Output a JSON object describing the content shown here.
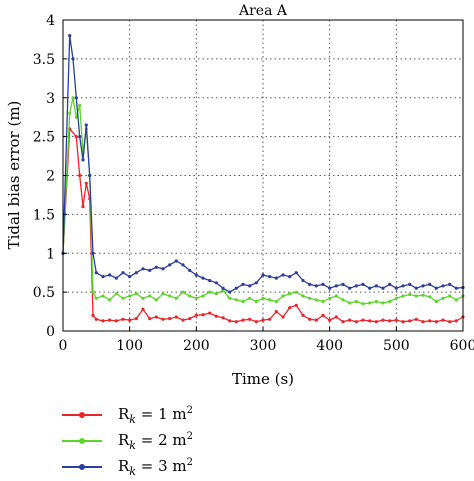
{
  "chart_data": {
    "type": "line",
    "title": "Area A",
    "xlabel": "Time (s)",
    "ylabel": "Tidal bias error (m)",
    "xlim": [
      0,
      600
    ],
    "ylim": [
      0,
      4
    ],
    "x_ticks": [
      0,
      100,
      200,
      300,
      400,
      500,
      600
    ],
    "y_ticks": [
      0,
      0.5,
      1,
      1.5,
      2,
      2.5,
      3,
      3.5,
      4
    ],
    "grid": true,
    "legend_position": "bottom-left-outside",
    "series": [
      {
        "name": "R_k = 1 m²",
        "legend": {
          "base": "R",
          "sub": "k",
          "mid": " = 1 m",
          "sup": "2"
        },
        "color": "#e8262a",
        "x": [
          0,
          10,
          20,
          25,
          30,
          35,
          40,
          45,
          50,
          60,
          70,
          80,
          90,
          100,
          110,
          120,
          130,
          140,
          150,
          160,
          170,
          180,
          190,
          200,
          210,
          220,
          230,
          240,
          250,
          260,
          270,
          280,
          290,
          300,
          310,
          320,
          330,
          340,
          350,
          360,
          370,
          380,
          390,
          400,
          410,
          420,
          430,
          440,
          450,
          460,
          470,
          480,
          490,
          500,
          510,
          520,
          530,
          540,
          550,
          560,
          570,
          580,
          590,
          600
        ],
        "y": [
          1.0,
          2.6,
          2.5,
          2.0,
          1.6,
          1.9,
          1.7,
          0.2,
          0.15,
          0.13,
          0.14,
          0.13,
          0.15,
          0.14,
          0.16,
          0.28,
          0.16,
          0.18,
          0.15,
          0.16,
          0.18,
          0.14,
          0.16,
          0.2,
          0.21,
          0.23,
          0.19,
          0.17,
          0.13,
          0.12,
          0.14,
          0.15,
          0.12,
          0.14,
          0.15,
          0.25,
          0.18,
          0.3,
          0.33,
          0.2,
          0.15,
          0.14,
          0.2,
          0.14,
          0.18,
          0.12,
          0.14,
          0.12,
          0.14,
          0.13,
          0.12,
          0.14,
          0.13,
          0.14,
          0.12,
          0.13,
          0.15,
          0.12,
          0.13,
          0.12,
          0.14,
          0.12,
          0.13,
          0.18
        ]
      },
      {
        "name": "R_k = 2 m²",
        "legend": {
          "base": "R",
          "sub": "k",
          "mid": " = 2 m",
          "sup": "2"
        },
        "color": "#5dd42c",
        "x": [
          0,
          10,
          15,
          20,
          25,
          30,
          35,
          40,
          45,
          50,
          60,
          70,
          80,
          90,
          100,
          110,
          120,
          130,
          140,
          150,
          160,
          170,
          180,
          190,
          200,
          210,
          220,
          230,
          240,
          250,
          260,
          270,
          280,
          290,
          300,
          310,
          320,
          330,
          340,
          350,
          360,
          370,
          380,
          390,
          400,
          410,
          420,
          430,
          440,
          450,
          460,
          470,
          480,
          490,
          500,
          510,
          520,
          530,
          540,
          550,
          560,
          570,
          580,
          590,
          600
        ],
        "y": [
          1.0,
          2.8,
          3.0,
          2.75,
          2.9,
          2.3,
          2.6,
          2.0,
          0.5,
          0.42,
          0.45,
          0.4,
          0.48,
          0.42,
          0.45,
          0.48,
          0.42,
          0.45,
          0.4,
          0.48,
          0.45,
          0.42,
          0.5,
          0.45,
          0.42,
          0.45,
          0.5,
          0.48,
          0.52,
          0.42,
          0.4,
          0.38,
          0.42,
          0.38,
          0.42,
          0.4,
          0.38,
          0.45,
          0.48,
          0.5,
          0.45,
          0.42,
          0.4,
          0.38,
          0.42,
          0.45,
          0.4,
          0.36,
          0.38,
          0.35,
          0.36,
          0.38,
          0.36,
          0.38,
          0.42,
          0.45,
          0.47,
          0.45,
          0.46,
          0.44,
          0.38,
          0.42,
          0.45,
          0.4,
          0.45
        ]
      },
      {
        "name": "R_k = 3 m²",
        "legend": {
          "base": "R",
          "sub": "k",
          "mid": " = 3 m",
          "sup": "2"
        },
        "color": "#2b3e9b",
        "x": [
          0,
          10,
          15,
          20,
          25,
          30,
          35,
          40,
          45,
          50,
          60,
          70,
          80,
          90,
          100,
          110,
          120,
          130,
          140,
          150,
          160,
          170,
          180,
          190,
          200,
          210,
          220,
          230,
          240,
          250,
          260,
          270,
          280,
          290,
          300,
          310,
          320,
          330,
          340,
          350,
          360,
          370,
          380,
          390,
          400,
          410,
          420,
          430,
          440,
          450,
          460,
          470,
          480,
          490,
          500,
          510,
          520,
          530,
          540,
          550,
          560,
          570,
          580,
          590,
          600
        ],
        "y": [
          1.0,
          3.8,
          3.5,
          3.0,
          2.5,
          2.2,
          2.65,
          2.0,
          1.0,
          0.75,
          0.7,
          0.72,
          0.68,
          0.75,
          0.7,
          0.75,
          0.8,
          0.78,
          0.82,
          0.8,
          0.85,
          0.9,
          0.85,
          0.78,
          0.72,
          0.68,
          0.65,
          0.62,
          0.55,
          0.5,
          0.55,
          0.6,
          0.58,
          0.62,
          0.72,
          0.7,
          0.68,
          0.72,
          0.7,
          0.75,
          0.65,
          0.6,
          0.58,
          0.6,
          0.55,
          0.58,
          0.6,
          0.55,
          0.58,
          0.6,
          0.55,
          0.58,
          0.55,
          0.6,
          0.55,
          0.58,
          0.6,
          0.55,
          0.58,
          0.6,
          0.55,
          0.58,
          0.6,
          0.55,
          0.56
        ]
      }
    ]
  }
}
